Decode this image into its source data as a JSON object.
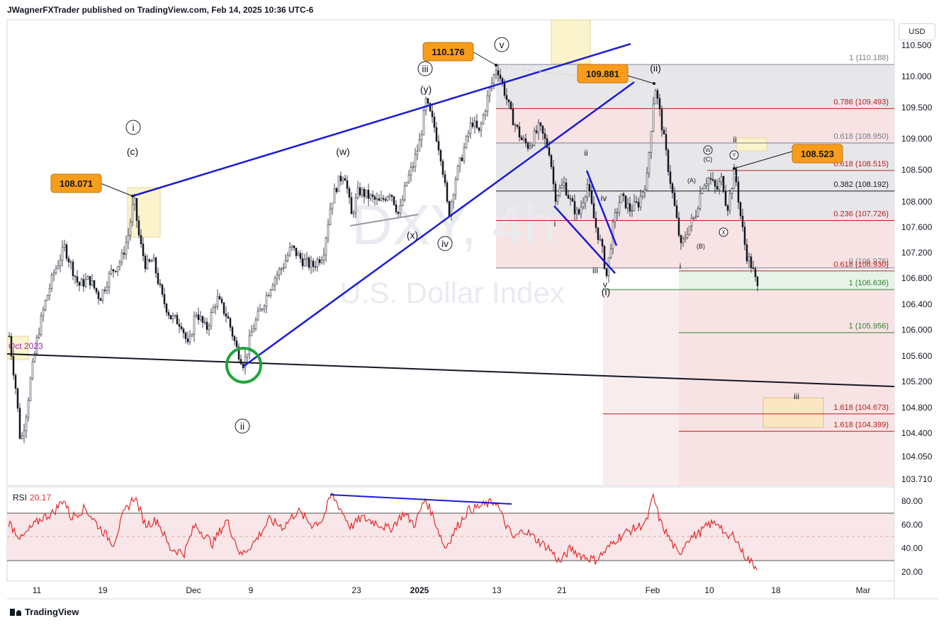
{
  "header": {
    "publisher": "JWagnerFXTrader published on TradingView.com, Feb 14, 2025 10:36 UTC-6"
  },
  "footer": {
    "brand": "TradingView"
  },
  "currency": "USD",
  "watermark": {
    "symbol": "DXY, 4h",
    "name": "U.S. Dollar Index"
  },
  "chart_data": {
    "type": "candlestick",
    "symbol": "DXY",
    "timeframe": "4h",
    "y_ticks": [
      "110.500",
      "110.000",
      "109.500",
      "109.000",
      "108.500",
      "108.000",
      "107.600",
      "107.200",
      "106.800",
      "106.400",
      "106.000",
      "105.600",
      "105.200",
      "104.800",
      "104.400",
      "104.050",
      "103.710"
    ],
    "x_ticks": [
      "11",
      "19",
      "Dec",
      "9",
      "23",
      "2025",
      "13",
      "21",
      "Feb",
      "10",
      "18",
      "Mar"
    ],
    "ylim": [
      103.71,
      110.5
    ],
    "trend_start_label": "Oct 2023",
    "price_callouts": [
      "110.176",
      "109.881",
      "108.071",
      "108.523"
    ],
    "fib_levels": [
      {
        "label": "1 (110.188)",
        "value": 110.188,
        "color": "#787b86"
      },
      {
        "label": "0.786 (109.493)",
        "value": 109.493,
        "color": "#b71c1c"
      },
      {
        "label": "0.618 (108.950)",
        "value": 108.95,
        "color": "#787b86"
      },
      {
        "label": "0.618 (108.515)",
        "value": 108.515,
        "color": "#b71c1c"
      },
      {
        "label": "0.382 (108.192)",
        "value": 108.192,
        "color": "#131722"
      },
      {
        "label": "0.236 (107.726)",
        "value": 107.726,
        "color": "#b71c1c"
      },
      {
        "label": "0 (106.976)",
        "value": 106.976,
        "color": "#787b86"
      },
      {
        "label": "0.618 (106.930)",
        "value": 106.93,
        "color": "#b71c1c"
      },
      {
        "label": "1 (106.636)",
        "value": 106.636,
        "color": "#2e7d32"
      },
      {
        "label": "1 (105.956)",
        "value": 105.956,
        "color": "#2e7d32"
      },
      {
        "label": "1.618 (104.673)",
        "value": 104.673,
        "color": "#b71c1c"
      },
      {
        "label": "1.618 (104.399)",
        "value": 104.399,
        "color": "#b71c1c"
      }
    ],
    "wave_labels": {
      "circled": [
        "i",
        "ii",
        "iii",
        "iv",
        "v",
        "w",
        "x",
        "y",
        "W",
        "Y",
        "X",
        "C"
      ],
      "paren": [
        "(c)",
        "(w)",
        "(x)",
        "(y)",
        "(ii)",
        "(i)",
        "(A)",
        "(B)",
        "(C)"
      ],
      "plain": [
        "ii",
        "iv",
        "i",
        "iii",
        "v",
        "i",
        "ii",
        "iii"
      ]
    },
    "rsi": {
      "label": "RSI",
      "value": "20.17",
      "y_ticks": [
        "80.00",
        "60.00",
        "40.00",
        "20.00"
      ],
      "upper": 70,
      "lower": 30,
      "mid": 50
    }
  }
}
